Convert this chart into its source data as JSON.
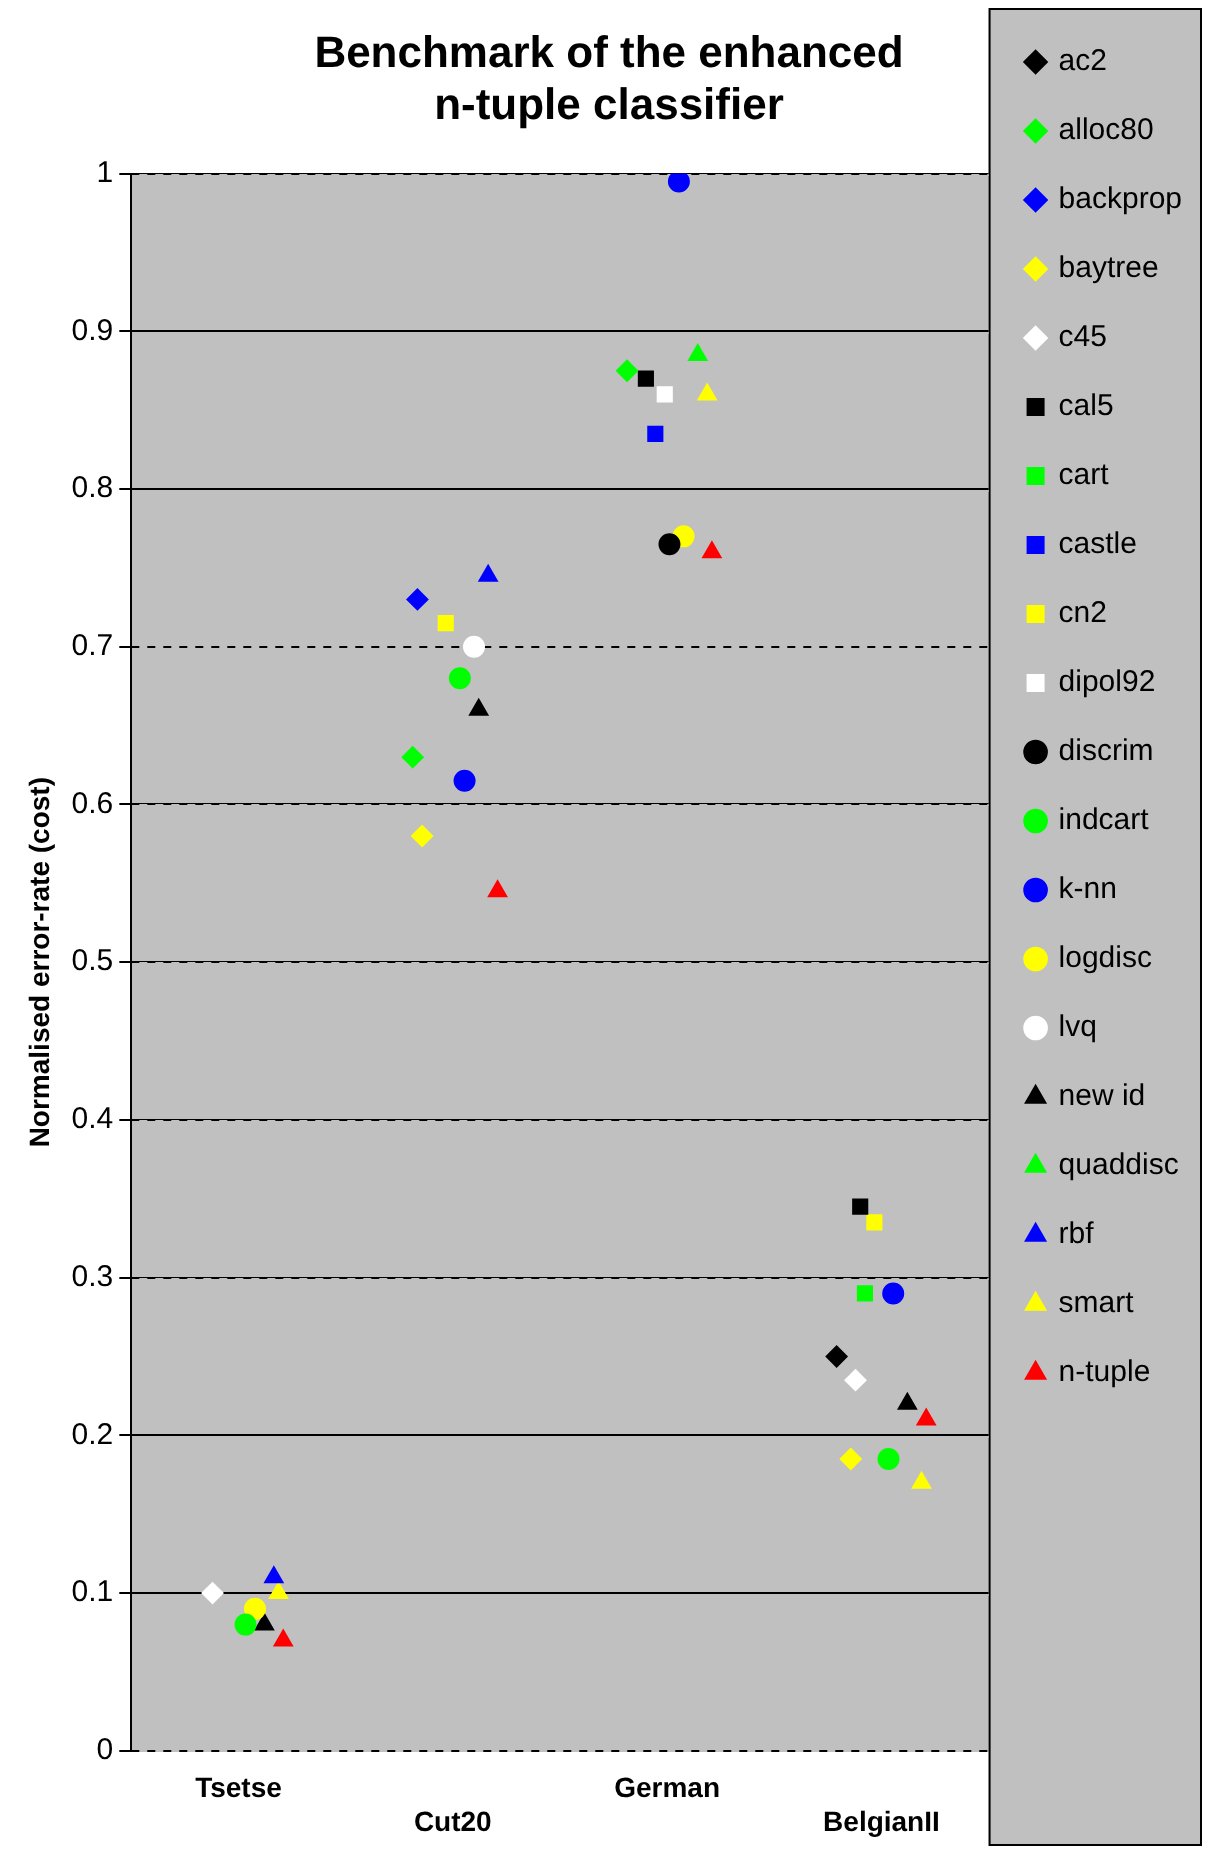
{
  "chart_data": {
    "type": "scatter",
    "title": "Benchmark of the enhanced n-tuple classifier",
    "ylabel": "Normalised error-rate (cost)",
    "categories": [
      "Tsetse",
      "Cut20",
      "German",
      "BelgianII"
    ],
    "ylim": [
      0,
      1
    ],
    "yticks": [
      0,
      0.1,
      0.2,
      0.3,
      0.4,
      0.5,
      0.6,
      0.7,
      0.8,
      0.9,
      1
    ],
    "grid": "y",
    "legend": "right",
    "series": [
      {
        "name": "ac2",
        "color": "#000000",
        "marker": "diamond",
        "values": [
          null,
          null,
          null,
          0.25
        ]
      },
      {
        "name": "alloc80",
        "color": "#00ff00",
        "marker": "diamond",
        "values": [
          null,
          0.63,
          0.875,
          null
        ]
      },
      {
        "name": "backprop",
        "color": "#0000ff",
        "marker": "diamond",
        "values": [
          null,
          0.73,
          null,
          null
        ]
      },
      {
        "name": "baytree",
        "color": "#ffff00",
        "marker": "diamond",
        "values": [
          null,
          0.58,
          null,
          0.185
        ]
      },
      {
        "name": "c45",
        "color": "#ffffff",
        "marker": "diamond",
        "values": [
          0.1,
          null,
          null,
          0.235
        ]
      },
      {
        "name": "cal5",
        "color": "#000000",
        "marker": "square",
        "values": [
          null,
          null,
          0.87,
          0.345
        ]
      },
      {
        "name": "cart",
        "color": "#00ff00",
        "marker": "square",
        "values": [
          null,
          null,
          null,
          0.29
        ]
      },
      {
        "name": "castle",
        "color": "#0000ff",
        "marker": "square",
        "values": [
          null,
          null,
          0.835,
          null
        ]
      },
      {
        "name": "cn2",
        "color": "#ffff00",
        "marker": "square",
        "values": [
          null,
          0.715,
          null,
          0.335
        ]
      },
      {
        "name": "dipol92",
        "color": "#ffffff",
        "marker": "square",
        "values": [
          null,
          null,
          0.86,
          null
        ]
      },
      {
        "name": "discrim",
        "color": "#000000",
        "marker": "circle",
        "values": [
          null,
          null,
          0.765,
          null
        ]
      },
      {
        "name": "indcart",
        "color": "#00ff00",
        "marker": "circle",
        "values": [
          0.08,
          0.68,
          null,
          0.185
        ]
      },
      {
        "name": "k-nn",
        "color": "#0000ff",
        "marker": "circle",
        "values": [
          null,
          0.615,
          0.995,
          0.29
        ]
      },
      {
        "name": "logdisc",
        "color": "#ffff00",
        "marker": "circle",
        "values": [
          0.09,
          null,
          0.77,
          null
        ]
      },
      {
        "name": "lvq",
        "color": "#ffffff",
        "marker": "circle",
        "values": [
          null,
          0.7,
          null,
          null
        ]
      },
      {
        "name": "new id",
        "color": "#000000",
        "marker": "triangle",
        "values": [
          0.08,
          0.66,
          null,
          0.22
        ]
      },
      {
        "name": "quaddisc",
        "color": "#00ff00",
        "marker": "triangle",
        "values": [
          null,
          null,
          0.885,
          null
        ]
      },
      {
        "name": "rbf",
        "color": "#0000ff",
        "marker": "triangle",
        "values": [
          0.11,
          0.745,
          null,
          null
        ]
      },
      {
        "name": "smart",
        "color": "#ffff00",
        "marker": "triangle",
        "values": [
          0.1,
          null,
          0.86,
          0.17
        ]
      },
      {
        "name": "n-tuple",
        "color": "#ff0000",
        "marker": "triangle",
        "values": [
          0.07,
          0.545,
          0.76,
          0.21
        ]
      }
    ]
  }
}
